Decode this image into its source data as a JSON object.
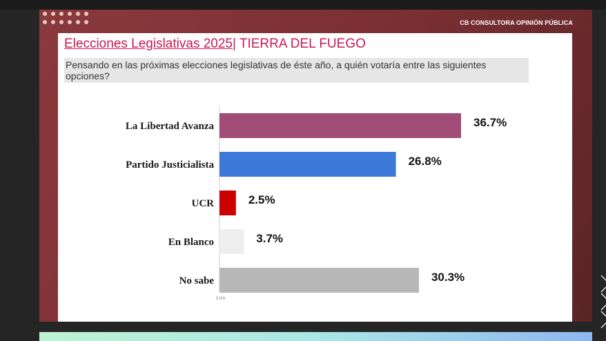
{
  "brand": "CB CONSULTORA OPINIÓN PÚBLICA",
  "title": {
    "main": "Elecciones Legislativas 2025",
    "separator": "| ",
    "region": "TIERRA DEL FUEGO"
  },
  "question": "Pensando en las próximas elecciones legislativas de éste año, a quién votaría entre las siguientes opciones?",
  "chart_data": {
    "type": "bar",
    "orientation": "horizontal",
    "categories": [
      "La Libertad Avanza",
      "Partido Justicialista",
      "UCR",
      "En Blanco",
      "No sabe"
    ],
    "values": [
      36.7,
      26.8,
      2.5,
      3.7,
      30.3
    ],
    "value_labels": [
      "36.7%",
      "26.8%",
      "2.5%",
      "3.7%",
      "30.3%"
    ],
    "colors": [
      "#a24d78",
      "#3c79d9",
      "#cc0000",
      "#eeeeee",
      "#b7b7b7"
    ],
    "axis_tick_label": "0.0%",
    "xlim": [
      0,
      36.7
    ],
    "grid": false,
    "legend": false
  }
}
